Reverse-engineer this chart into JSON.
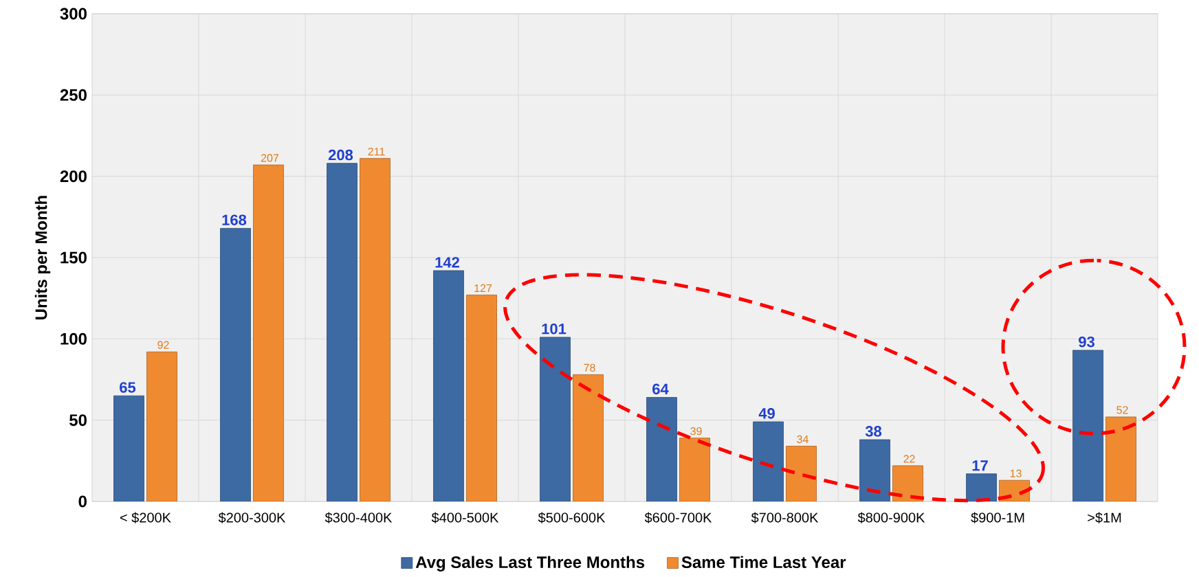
{
  "chart_data": {
    "type": "bar",
    "ylabel": "Units per Month",
    "categories": [
      "< $200K",
      "$200-300K",
      "$300-400K",
      "$400-500K",
      "$500-600K",
      "$600-700K",
      "$700-800K",
      "$800-900K",
      "$900-1M",
      ">$1M"
    ],
    "series": [
      {
        "name": "Avg Sales Last Three Months",
        "color": "#3d6aa3",
        "values": [
          65,
          168,
          208,
          142,
          101,
          64,
          49,
          38,
          17,
          93
        ]
      },
      {
        "name": "Same Time Last Year",
        "color": "#f08a30",
        "values": [
          92,
          207,
          211,
          127,
          78,
          39,
          34,
          22,
          13,
          52
        ]
      }
    ],
    "ylim": [
      0,
      300
    ],
    "yticks": [
      0,
      50,
      100,
      150,
      200,
      250,
      300
    ],
    "grid": true,
    "legend": "bottom",
    "data_labels": true
  }
}
